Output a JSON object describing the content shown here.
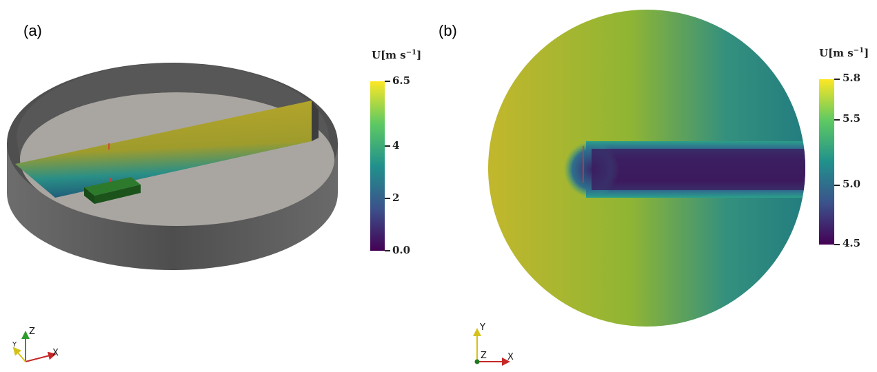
{
  "panels": [
    {
      "label": "(a)",
      "colorbar": {
        "title_main": "U[m s",
        "title_exp": "−1",
        "title_close": "]",
        "ticks": [
          "6.5",
          "4",
          "2",
          "0.0"
        ],
        "tick_values": [
          6.5,
          4,
          2,
          0.0
        ],
        "range": [
          0.0,
          6.5
        ]
      },
      "axes_triad": {
        "x": "X",
        "y": "Y",
        "z": "Z"
      }
    },
    {
      "label": "(b)",
      "colorbar": {
        "title_main": "U[m s",
        "title_exp": "−1",
        "title_close": "]",
        "ticks": [
          "5.8",
          "5.5",
          "5.0",
          "4.5"
        ],
        "tick_values": [
          5.8,
          5.5,
          5.0,
          4.5
        ],
        "range": [
          4.5,
          5.8
        ]
      },
      "axes_triad": {
        "x": "X",
        "y": "Y",
        "z": "Z"
      }
    }
  ],
  "colors": {
    "viridis_top": "#f3e61f",
    "viridis_mid": "#21918c",
    "viridis_bottom": "#440154",
    "wall": "#5a5a5a",
    "floor": "#a9a6a1",
    "obstacle": "#1f5a1f"
  }
}
